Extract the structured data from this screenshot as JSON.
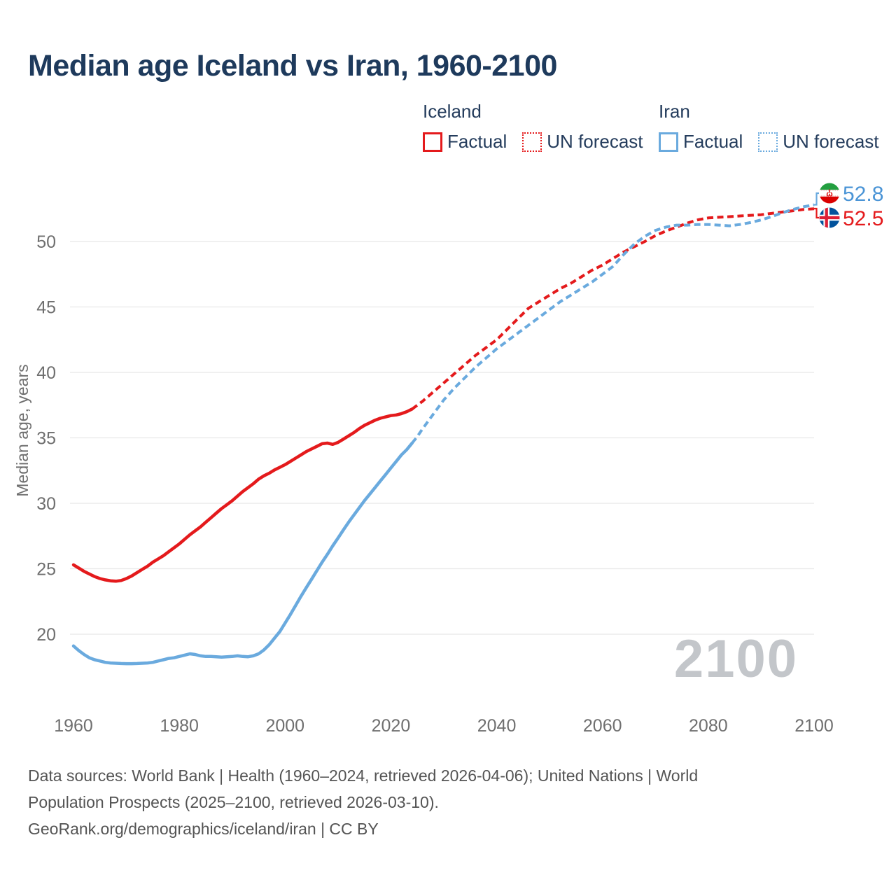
{
  "title": "Median age Iceland vs Iran, 1960-2100",
  "legend": {
    "groups": [
      {
        "name": "Iceland",
        "items": [
          {
            "label": "Factual",
            "style": "solid",
            "color": "#e41a1c"
          },
          {
            "label": "UN forecast",
            "style": "dotted",
            "color": "#e41a1c"
          }
        ]
      },
      {
        "name": "Iran",
        "items": [
          {
            "label": "Factual",
            "style": "solid",
            "color": "#6aaade"
          },
          {
            "label": "UN forecast",
            "style": "dotted",
            "color": "#6aaade"
          }
        ]
      }
    ]
  },
  "chart_data": {
    "type": "line",
    "title": "Median age Iceland vs Iran, 1960-2100",
    "xlabel": "",
    "ylabel": "Median age, years",
    "xlim": [
      1960,
      2100
    ],
    "ylim": [
      15,
      55
    ],
    "xticks": [
      1960,
      1980,
      2000,
      2020,
      2040,
      2060,
      2080,
      2100
    ],
    "yticks": [
      20,
      25,
      30,
      35,
      40,
      45,
      50
    ],
    "grid": "horizontal",
    "legend_position": "top-right",
    "watermark": "2100",
    "forecast_start_year": 2025,
    "series": [
      {
        "name": "Iceland Factual",
        "color": "#e41a1c",
        "dash": "solid",
        "points": [
          [
            1960,
            25.3
          ],
          [
            1961,
            25.05
          ],
          [
            1962,
            24.8
          ],
          [
            1963,
            24.6
          ],
          [
            1964,
            24.4
          ],
          [
            1965,
            24.25
          ],
          [
            1966,
            24.15
          ],
          [
            1967,
            24.08
          ],
          [
            1968,
            24.05
          ],
          [
            1969,
            24.1
          ],
          [
            1970,
            24.25
          ],
          [
            1971,
            24.45
          ],
          [
            1972,
            24.7
          ],
          [
            1973,
            24.95
          ],
          [
            1974,
            25.2
          ],
          [
            1975,
            25.5
          ],
          [
            1976,
            25.75
          ],
          [
            1977,
            26.0
          ],
          [
            1978,
            26.3
          ],
          [
            1979,
            26.6
          ],
          [
            1980,
            26.9
          ],
          [
            1981,
            27.25
          ],
          [
            1982,
            27.6
          ],
          [
            1983,
            27.9
          ],
          [
            1984,
            28.2
          ],
          [
            1985,
            28.55
          ],
          [
            1986,
            28.9
          ],
          [
            1987,
            29.25
          ],
          [
            1988,
            29.6
          ],
          [
            1989,
            29.9
          ],
          [
            1990,
            30.2
          ],
          [
            1991,
            30.55
          ],
          [
            1992,
            30.9
          ],
          [
            1993,
            31.2
          ],
          [
            1994,
            31.5
          ],
          [
            1995,
            31.85
          ],
          [
            1996,
            32.1
          ],
          [
            1997,
            32.3
          ],
          [
            1998,
            32.55
          ],
          [
            1999,
            32.75
          ],
          [
            2000,
            32.95
          ],
          [
            2001,
            33.2
          ],
          [
            2002,
            33.45
          ],
          [
            2003,
            33.7
          ],
          [
            2004,
            33.95
          ],
          [
            2005,
            34.15
          ],
          [
            2006,
            34.35
          ],
          [
            2007,
            34.55
          ],
          [
            2008,
            34.6
          ],
          [
            2009,
            34.5
          ],
          [
            2010,
            34.65
          ],
          [
            2011,
            34.9
          ],
          [
            2012,
            35.15
          ],
          [
            2013,
            35.4
          ],
          [
            2014,
            35.7
          ],
          [
            2015,
            35.95
          ],
          [
            2016,
            36.15
          ],
          [
            2017,
            36.35
          ],
          [
            2018,
            36.5
          ],
          [
            2019,
            36.6
          ],
          [
            2020,
            36.7
          ],
          [
            2021,
            36.75
          ],
          [
            2022,
            36.85
          ],
          [
            2023,
            37.0
          ],
          [
            2024,
            37.2
          ]
        ]
      },
      {
        "name": "Iceland UN forecast",
        "color": "#e41a1c",
        "dash": "dashed",
        "points": [
          [
            2024,
            37.2
          ],
          [
            2025,
            37.5
          ],
          [
            2026,
            37.8
          ],
          [
            2028,
            38.5
          ],
          [
            2030,
            39.2
          ],
          [
            2032,
            39.9
          ],
          [
            2034,
            40.6
          ],
          [
            2036,
            41.3
          ],
          [
            2038,
            41.9
          ],
          [
            2040,
            42.5
          ],
          [
            2042,
            43.3
          ],
          [
            2044,
            44.1
          ],
          [
            2046,
            44.9
          ],
          [
            2048,
            45.4
          ],
          [
            2050,
            45.9
          ],
          [
            2052,
            46.4
          ],
          [
            2054,
            46.8
          ],
          [
            2056,
            47.3
          ],
          [
            2058,
            47.8
          ],
          [
            2060,
            48.2
          ],
          [
            2062,
            48.7
          ],
          [
            2064,
            49.2
          ],
          [
            2066,
            49.6
          ],
          [
            2068,
            50.0
          ],
          [
            2070,
            50.45
          ],
          [
            2072,
            50.8
          ],
          [
            2074,
            51.1
          ],
          [
            2076,
            51.4
          ],
          [
            2078,
            51.65
          ],
          [
            2080,
            51.8
          ],
          [
            2082,
            51.85
          ],
          [
            2084,
            51.9
          ],
          [
            2086,
            51.95
          ],
          [
            2088,
            52.0
          ],
          [
            2090,
            52.05
          ],
          [
            2092,
            52.15
          ],
          [
            2094,
            52.25
          ],
          [
            2096,
            52.35
          ],
          [
            2098,
            52.45
          ],
          [
            2100,
            52.5
          ]
        ]
      },
      {
        "name": "Iran Factual",
        "color": "#6aaade",
        "dash": "solid",
        "points": [
          [
            1960,
            19.1
          ],
          [
            1961,
            18.75
          ],
          [
            1962,
            18.45
          ],
          [
            1963,
            18.2
          ],
          [
            1964,
            18.05
          ],
          [
            1965,
            17.95
          ],
          [
            1966,
            17.85
          ],
          [
            1967,
            17.8
          ],
          [
            1968,
            17.78
          ],
          [
            1969,
            17.76
          ],
          [
            1970,
            17.75
          ],
          [
            1971,
            17.75
          ],
          [
            1972,
            17.76
          ],
          [
            1973,
            17.78
          ],
          [
            1974,
            17.8
          ],
          [
            1975,
            17.85
          ],
          [
            1976,
            17.95
          ],
          [
            1977,
            18.05
          ],
          [
            1978,
            18.15
          ],
          [
            1979,
            18.2
          ],
          [
            1980,
            18.3
          ],
          [
            1981,
            18.4
          ],
          [
            1982,
            18.5
          ],
          [
            1983,
            18.45
          ],
          [
            1984,
            18.35
          ],
          [
            1985,
            18.3
          ],
          [
            1986,
            18.3
          ],
          [
            1987,
            18.28
          ],
          [
            1988,
            18.25
          ],
          [
            1989,
            18.28
          ],
          [
            1990,
            18.3
          ],
          [
            1991,
            18.35
          ],
          [
            1992,
            18.3
          ],
          [
            1993,
            18.28
          ],
          [
            1994,
            18.35
          ],
          [
            1995,
            18.5
          ],
          [
            1996,
            18.8
          ],
          [
            1997,
            19.2
          ],
          [
            1998,
            19.7
          ],
          [
            1999,
            20.2
          ],
          [
            2000,
            20.85
          ],
          [
            2001,
            21.5
          ],
          [
            2002,
            22.2
          ],
          [
            2003,
            22.9
          ],
          [
            2004,
            23.55
          ],
          [
            2005,
            24.2
          ],
          [
            2006,
            24.85
          ],
          [
            2007,
            25.5
          ],
          [
            2008,
            26.1
          ],
          [
            2009,
            26.75
          ],
          [
            2010,
            27.35
          ],
          [
            2011,
            27.95
          ],
          [
            2012,
            28.55
          ],
          [
            2013,
            29.1
          ],
          [
            2014,
            29.65
          ],
          [
            2015,
            30.2
          ],
          [
            2016,
            30.7
          ],
          [
            2017,
            31.2
          ],
          [
            2018,
            31.7
          ],
          [
            2019,
            32.2
          ],
          [
            2020,
            32.7
          ],
          [
            2021,
            33.2
          ],
          [
            2022,
            33.7
          ],
          [
            2023,
            34.1
          ],
          [
            2024,
            34.6
          ]
        ]
      },
      {
        "name": "Iran UN forecast",
        "color": "#6aaade",
        "dash": "dashed",
        "points": [
          [
            2024,
            34.6
          ],
          [
            2025,
            35.1
          ],
          [
            2026,
            35.7
          ],
          [
            2028,
            36.8
          ],
          [
            2030,
            37.9
          ],
          [
            2032,
            38.8
          ],
          [
            2034,
            39.6
          ],
          [
            2035,
            40.0
          ],
          [
            2036,
            40.4
          ],
          [
            2038,
            41.1
          ],
          [
            2040,
            41.8
          ],
          [
            2042,
            42.4
          ],
          [
            2044,
            43.0
          ],
          [
            2046,
            43.6
          ],
          [
            2048,
            44.2
          ],
          [
            2050,
            44.8
          ],
          [
            2052,
            45.4
          ],
          [
            2054,
            45.9
          ],
          [
            2056,
            46.4
          ],
          [
            2058,
            46.9
          ],
          [
            2060,
            47.5
          ],
          [
            2062,
            48.1
          ],
          [
            2064,
            49.0
          ],
          [
            2066,
            49.8
          ],
          [
            2068,
            50.4
          ],
          [
            2070,
            50.85
          ],
          [
            2072,
            51.1
          ],
          [
            2074,
            51.25
          ],
          [
            2076,
            51.25
          ],
          [
            2078,
            51.3
          ],
          [
            2080,
            51.3
          ],
          [
            2082,
            51.25
          ],
          [
            2084,
            51.2
          ],
          [
            2086,
            51.3
          ],
          [
            2088,
            51.45
          ],
          [
            2090,
            51.65
          ],
          [
            2092,
            51.9
          ],
          [
            2094,
            52.2
          ],
          [
            2096,
            52.45
          ],
          [
            2098,
            52.65
          ],
          [
            2100,
            52.8
          ]
        ]
      }
    ],
    "end_labels": [
      {
        "series": "Iran",
        "value": "52.8",
        "color": "#4a94d6",
        "flag": "iran"
      },
      {
        "series": "Iceland",
        "value": "52.5",
        "color": "#e41a1c",
        "flag": "iceland"
      }
    ]
  },
  "footer": {
    "lines": [
      "Data sources: World Bank | Health (1960–2024, retrieved 2026-04-06); United Nations | World",
      "Population Prospects (2025–2100, retrieved 2026-03-10).",
      "GeoRank.org/demographics/iceland/iran | CC BY"
    ]
  }
}
